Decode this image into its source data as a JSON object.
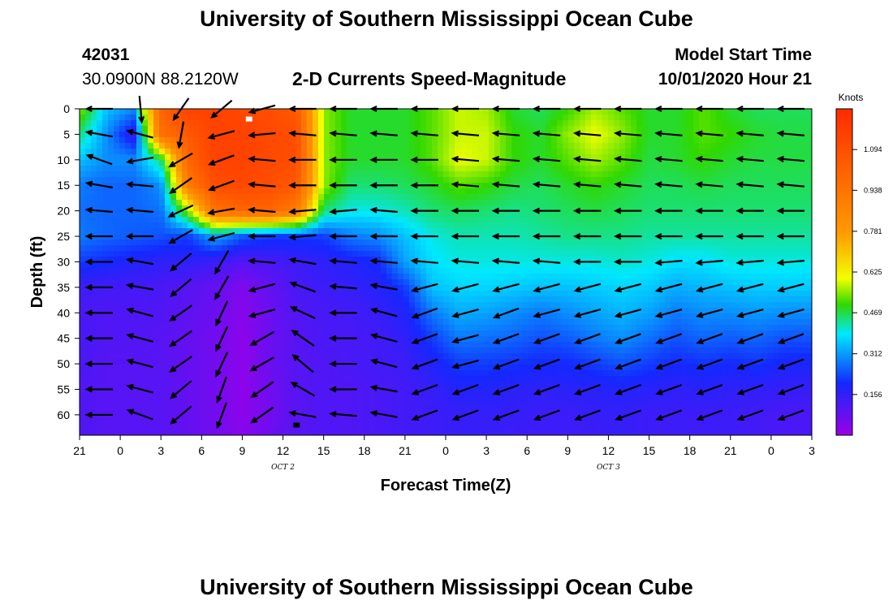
{
  "page": {
    "top_title": "University of Southern Mississippi Ocean Cube",
    "bottom_title": "University of Southern Mississippi Ocean Cube",
    "station_id": "42031",
    "station_coords": "30.0900N 88.2120W",
    "plot_title": "2-D Currents Speed-Magnitude",
    "model_start_label": "Model Start Time",
    "model_start_value": "10/01/2020 Hour 21"
  },
  "chart_data": {
    "type": "heatmap",
    "title": "2-D Currents Speed-Magnitude",
    "xlabel": "Forecast Time(Z)",
    "ylabel": "Depth (ft)",
    "x_ticks": [
      "21",
      "0",
      "3",
      "6",
      "9",
      "12",
      "15",
      "18",
      "21",
      "0",
      "3",
      "6",
      "9",
      "12",
      "15",
      "18",
      "21",
      "0",
      "3"
    ],
    "x_range_hours": [
      0,
      54
    ],
    "date_labels": [
      {
        "label": "OCT 2",
        "at_hour": 15
      },
      {
        "label": "OCT 3",
        "at_hour": 39
      }
    ],
    "y_ticks": [
      0,
      5,
      10,
      15,
      20,
      25,
      30,
      35,
      40,
      45,
      50,
      55,
      60
    ],
    "y_range": [
      0,
      64
    ],
    "y_inverted": true,
    "colorbar": {
      "label": "Knots",
      "ticks": [
        1.094,
        0.938,
        0.781,
        0.625,
        0.469,
        0.312,
        0.156
      ],
      "range": [
        0,
        1.25
      ]
    },
    "colors": {
      "purple": "#9a00e8",
      "blue": "#1428ff",
      "cyan": "#00e8ff",
      "green": "#30d800",
      "yellow": "#f2ff00",
      "orange": "#ff9a00",
      "red": "#ff2a00"
    },
    "speed_profile": {
      "depths": [
        0,
        5,
        10,
        15,
        20,
        25,
        30,
        35,
        40,
        45,
        50,
        55,
        60,
        64
      ],
      "columns": [
        {
          "hour": 0,
          "values": [
            0.55,
            0.45,
            0.35,
            0.28,
            0.27,
            0.28,
            0.22,
            0.14,
            0.12,
            0.12,
            0.12,
            0.11,
            0.11,
            0.11
          ]
        },
        {
          "hour": 2,
          "values": [
            0.35,
            0.3,
            0.3,
            0.26,
            0.26,
            0.26,
            0.2,
            0.13,
            0.11,
            0.11,
            0.1,
            0.1,
            0.1,
            0.1
          ]
        },
        {
          "hour": 4,
          "values": [
            0.3,
            0.15,
            0.3,
            0.26,
            0.26,
            0.25,
            0.18,
            0.13,
            0.11,
            0.11,
            0.1,
            0.1,
            0.1,
            0.1
          ]
        },
        {
          "hour": 6,
          "values": [
            1.0,
            0.95,
            0.45,
            0.3,
            0.27,
            0.24,
            0.16,
            0.12,
            0.11,
            0.1,
            0.1,
            0.1,
            0.1,
            0.1
          ]
        },
        {
          "hour": 8,
          "values": [
            1.15,
            1.05,
            1.0,
            0.9,
            0.55,
            0.22,
            0.16,
            0.1,
            0.09,
            0.08,
            0.08,
            0.08,
            0.08,
            0.08
          ]
        },
        {
          "hour": 10,
          "values": [
            1.15,
            1.15,
            1.15,
            1.1,
            0.95,
            0.33,
            0.14,
            0.08,
            0.07,
            0.06,
            0.06,
            0.06,
            0.06,
            0.06
          ]
        },
        {
          "hour": 12,
          "values": [
            1.12,
            1.15,
            1.15,
            1.12,
            1.0,
            0.25,
            0.1,
            0.04,
            0.03,
            0.02,
            0.02,
            0.02,
            0.02,
            0.03
          ]
        },
        {
          "hour": 14,
          "values": [
            1.1,
            1.12,
            1.12,
            1.1,
            1.0,
            0.22,
            0.12,
            0.08,
            0.07,
            0.07,
            0.07,
            0.06,
            0.06,
            0.07
          ]
        },
        {
          "hour": 16,
          "values": [
            1.05,
            1.1,
            1.1,
            1.05,
            0.9,
            0.22,
            0.14,
            0.12,
            0.11,
            0.1,
            0.1,
            0.1,
            0.1,
            0.1
          ]
        },
        {
          "hour": 18,
          "values": [
            0.55,
            0.55,
            0.55,
            0.55,
            0.45,
            0.22,
            0.16,
            0.14,
            0.12,
            0.12,
            0.11,
            0.11,
            0.11,
            0.11
          ]
        },
        {
          "hour": 20,
          "values": [
            0.48,
            0.48,
            0.48,
            0.45,
            0.4,
            0.28,
            0.18,
            0.15,
            0.13,
            0.12,
            0.12,
            0.11,
            0.11,
            0.11
          ]
        },
        {
          "hour": 22,
          "values": [
            0.48,
            0.48,
            0.48,
            0.45,
            0.4,
            0.3,
            0.2,
            0.17,
            0.15,
            0.13,
            0.13,
            0.12,
            0.12,
            0.12
          ]
        },
        {
          "hour": 24,
          "values": [
            0.48,
            0.48,
            0.48,
            0.46,
            0.42,
            0.35,
            0.32,
            0.22,
            0.18,
            0.16,
            0.14,
            0.13,
            0.13,
            0.13
          ]
        },
        {
          "hour": 26,
          "values": [
            0.52,
            0.52,
            0.52,
            0.48,
            0.45,
            0.4,
            0.38,
            0.35,
            0.28,
            0.22,
            0.18,
            0.15,
            0.14,
            0.14
          ]
        },
        {
          "hour": 28,
          "values": [
            0.58,
            0.58,
            0.6,
            0.52,
            0.46,
            0.42,
            0.4,
            0.37,
            0.33,
            0.28,
            0.22,
            0.18,
            0.15,
            0.15
          ]
        },
        {
          "hour": 30,
          "values": [
            0.56,
            0.58,
            0.58,
            0.5,
            0.45,
            0.42,
            0.4,
            0.37,
            0.32,
            0.27,
            0.22,
            0.18,
            0.15,
            0.15
          ]
        },
        {
          "hour": 32,
          "values": [
            0.48,
            0.5,
            0.5,
            0.47,
            0.44,
            0.42,
            0.4,
            0.36,
            0.3,
            0.26,
            0.21,
            0.17,
            0.15,
            0.14
          ]
        },
        {
          "hour": 34,
          "values": [
            0.46,
            0.48,
            0.48,
            0.46,
            0.45,
            0.43,
            0.4,
            0.35,
            0.28,
            0.24,
            0.2,
            0.16,
            0.14,
            0.14
          ]
        },
        {
          "hour": 36,
          "values": [
            0.5,
            0.55,
            0.52,
            0.48,
            0.46,
            0.44,
            0.4,
            0.35,
            0.3,
            0.25,
            0.2,
            0.17,
            0.14,
            0.14
          ]
        },
        {
          "hour": 38,
          "values": [
            0.56,
            0.6,
            0.56,
            0.5,
            0.47,
            0.44,
            0.4,
            0.36,
            0.32,
            0.28,
            0.22,
            0.17,
            0.15,
            0.14
          ]
        },
        {
          "hour": 40,
          "values": [
            0.52,
            0.55,
            0.52,
            0.48,
            0.46,
            0.44,
            0.41,
            0.37,
            0.34,
            0.3,
            0.24,
            0.18,
            0.15,
            0.15
          ]
        },
        {
          "hour": 42,
          "values": [
            0.48,
            0.48,
            0.47,
            0.46,
            0.45,
            0.43,
            0.4,
            0.36,
            0.32,
            0.27,
            0.22,
            0.17,
            0.14,
            0.14
          ]
        },
        {
          "hour": 44,
          "values": [
            0.48,
            0.48,
            0.48,
            0.46,
            0.45,
            0.43,
            0.38,
            0.33,
            0.28,
            0.24,
            0.2,
            0.16,
            0.14,
            0.14
          ]
        },
        {
          "hour": 46,
          "values": [
            0.52,
            0.52,
            0.5,
            0.47,
            0.45,
            0.43,
            0.38,
            0.34,
            0.3,
            0.26,
            0.21,
            0.17,
            0.14,
            0.14
          ]
        },
        {
          "hour": 48,
          "values": [
            0.48,
            0.5,
            0.48,
            0.46,
            0.45,
            0.43,
            0.4,
            0.35,
            0.3,
            0.25,
            0.2,
            0.16,
            0.14,
            0.14
          ]
        },
        {
          "hour": 50,
          "values": [
            0.46,
            0.48,
            0.47,
            0.46,
            0.45,
            0.43,
            0.4,
            0.36,
            0.31,
            0.26,
            0.21,
            0.16,
            0.13,
            0.13
          ]
        },
        {
          "hour": 52,
          "values": [
            0.46,
            0.47,
            0.47,
            0.46,
            0.45,
            0.43,
            0.4,
            0.36,
            0.3,
            0.24,
            0.19,
            0.15,
            0.12,
            0.12
          ]
        },
        {
          "hour": 54,
          "values": [
            0.46,
            0.47,
            0.47,
            0.46,
            0.45,
            0.43,
            0.4,
            0.36,
            0.3,
            0.24,
            0.19,
            0.15,
            0.12,
            0.12
          ]
        }
      ]
    },
    "vectors": {
      "hours": [
        1.5,
        4.5,
        7.5,
        10.5,
        13.5,
        16.5,
        19.5,
        22.5,
        25.5,
        28.5,
        31.5,
        34.5,
        37.5,
        40.5,
        43.5,
        46.5,
        49.5,
        52.5
      ],
      "depths": [
        0,
        5,
        10,
        15,
        20,
        25,
        30,
        35,
        40,
        45,
        50,
        55,
        60
      ],
      "angles_deg": [
        [
          180,
          170,
          160,
          170,
          175,
          180,
          180,
          180,
          180,
          180,
          180,
          180,
          180
        ],
        [
          275,
          165,
          190,
          175,
          175,
          180,
          170,
          170,
          165,
          165,
          165,
          165,
          160
        ],
        [
          235,
          260,
          210,
          215,
          205,
          210,
          220,
          220,
          215,
          215,
          215,
          220,
          220
        ],
        [
          220,
          195,
          200,
          200,
          190,
          195,
          240,
          240,
          245,
          245,
          245,
          250,
          250
        ],
        [
          195,
          185,
          175,
          175,
          175,
          180,
          175,
          195,
          195,
          210,
          210,
          215,
          215
        ],
        [
          180,
          175,
          180,
          180,
          185,
          185,
          170,
          160,
          155,
          145,
          140,
          150,
          170
        ],
        [
          180,
          175,
          180,
          180,
          185,
          180,
          175,
          175,
          180,
          180,
          180,
          180,
          175
        ],
        [
          180,
          175,
          180,
          180,
          175,
          180,
          175,
          170,
          165,
          165,
          165,
          170,
          170
        ],
        [
          180,
          175,
          180,
          180,
          180,
          180,
          175,
          195,
          200,
          200,
          200,
          200,
          200
        ],
        [
          180,
          175,
          175,
          175,
          180,
          180,
          175,
          195,
          195,
          195,
          195,
          200,
          200
        ],
        [
          180,
          175,
          175,
          175,
          180,
          180,
          175,
          195,
          200,
          200,
          200,
          200,
          200
        ],
        [
          180,
          175,
          175,
          175,
          180,
          180,
          175,
          195,
          195,
          200,
          200,
          200,
          200
        ],
        [
          180,
          175,
          175,
          175,
          180,
          180,
          180,
          195,
          195,
          200,
          200,
          200,
          200
        ],
        [
          180,
          175,
          175,
          175,
          180,
          180,
          180,
          195,
          195,
          200,
          200,
          200,
          200
        ],
        [
          180,
          175,
          175,
          175,
          180,
          180,
          185,
          195,
          195,
          200,
          200,
          200,
          200
        ],
        [
          180,
          175,
          175,
          175,
          180,
          180,
          185,
          195,
          195,
          200,
          200,
          200,
          200
        ],
        [
          180,
          175,
          175,
          175,
          180,
          180,
          185,
          195,
          195,
          200,
          200,
          200,
          200
        ],
        [
          180,
          175,
          175,
          175,
          180,
          180,
          185,
          195,
          195,
          200,
          200,
          200,
          200
        ]
      ]
    },
    "markers": [
      {
        "hour": 12.5,
        "depth": 2,
        "color": "#ffffff"
      },
      {
        "hour": 16.0,
        "depth": 62,
        "color": "#000000"
      }
    ]
  }
}
